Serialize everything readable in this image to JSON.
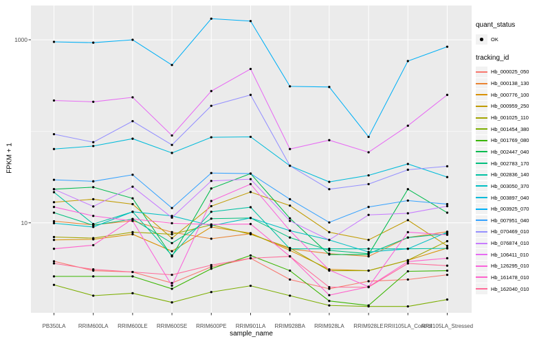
{
  "figure": {
    "y_axis": {
      "title": "FPKM + 1",
      "scale": "log10",
      "tick_labels": [
        "1000",
        "10"
      ]
    },
    "x_axis": {
      "title": "sample_name"
    },
    "legend": {
      "quant_status_title": "quant_status",
      "quant_status_items": [
        "OK"
      ],
      "tracking_id_title": "tracking_id"
    }
  },
  "colors": {
    "page_bg": "#FFFFFF",
    "panel_bg": "#EBEBEB",
    "grid": "#FFFFFF",
    "legend_key_bg": "#F2F2F2",
    "tick_text": "#4D4D4D",
    "text": "#000000",
    "point": "#000000"
  },
  "chart_data": {
    "type": "line",
    "title": "",
    "xlabel": "sample_name",
    "ylabel": "FPKM + 1",
    "y_scale": "log10",
    "ylim": [
      1,
      2400
    ],
    "y_major_ticks": [
      10,
      1000
    ],
    "y_minor_gridlines": [
      100
    ],
    "grid": true,
    "legend_position": "right",
    "quant_status": "OK",
    "point_marker": {
      "shape": "dot",
      "color": "#000000"
    },
    "categories": [
      "PB350LA",
      "RRIM600LA",
      "RRIM600LE",
      "RRIM600SE",
      "RRIM600PE",
      "RRIM901LA",
      "RRIM928BA",
      "RRIM928LA",
      "RRIM928LE",
      "RRII105LA_Control",
      "RRII105LA_Stressed"
    ],
    "series": [
      {
        "name": "Hb_000025_050",
        "color": "#F8766D",
        "values": [
          3.8,
          3.0,
          2.9,
          2.2,
          3.3,
          4.1,
          2.4,
          1.9,
          2.3,
          2.4,
          2.7
        ]
      },
      {
        "name": "Hb_000138_130",
        "color": "#EA8331",
        "values": [
          10.4,
          9.5,
          10.5,
          7.9,
          6.7,
          7.6,
          5.2,
          4.6,
          4.3,
          6.9,
          8.0
        ]
      },
      {
        "name": "Hb_000776_100",
        "color": "#D89000",
        "values": [
          6.5,
          6.6,
          7.5,
          4.9,
          9.0,
          7.7,
          5.0,
          3.1,
          3.0,
          3.9,
          5.3
        ]
      },
      {
        "name": "Hb_000959_250",
        "color": "#C09B00",
        "values": [
          16.8,
          18.1,
          16.0,
          6.8,
          15.2,
          21.7,
          15.4,
          7.9,
          6.5,
          10.7,
          5.6
        ]
      },
      {
        "name": "Hb_001025_110",
        "color": "#A3A500",
        "values": [
          7.0,
          6.8,
          7.9,
          7.5,
          9.5,
          7.5,
          5.3,
          3.0,
          3.0,
          3.9,
          6.3
        ]
      },
      {
        "name": "Hb_001454_380",
        "color": "#7CAE00",
        "values": [
          2.1,
          1.6,
          1.7,
          1.35,
          1.75,
          2.05,
          1.6,
          1.25,
          1.22,
          1.22,
          1.45
        ]
      },
      {
        "name": "Hb_001769_080",
        "color": "#39B600",
        "values": [
          2.6,
          2.6,
          2.6,
          1.9,
          3.15,
          4.4,
          3.0,
          1.4,
          1.25,
          2.95,
          3.0
        ]
      },
      {
        "name": "Hb_002447_040",
        "color": "#00BB4E",
        "values": [
          23.3,
          24.5,
          18.5,
          4.3,
          23.7,
          34.5,
          11.2,
          4.5,
          4.5,
          23.3,
          12.9
        ]
      },
      {
        "name": "Hb_002783_170",
        "color": "#00BF7D",
        "values": [
          12.9,
          9.4,
          11.0,
          6.0,
          11.1,
          11.3,
          6.9,
          5.0,
          4.6,
          6.9,
          7.6
        ]
      },
      {
        "name": "Hb_002836_140",
        "color": "#00C1A3",
        "values": [
          21.6,
          9.7,
          13.2,
          4.4,
          13.2,
          14.8,
          5.2,
          5.2,
          5.2,
          5.2,
          5.25
        ]
      },
      {
        "name": "Hb_003050_370",
        "color": "#00BFC4",
        "values": [
          9.9,
          9.0,
          13.2,
          11.9,
          9.3,
          11.3,
          8.2,
          6.5,
          4.8,
          5.2,
          7.9
        ]
      },
      {
        "name": "Hb_003897_040",
        "color": "#00BBDA",
        "values": [
          64,
          69,
          83,
          58,
          86,
          87,
          42,
          28,
          33,
          44,
          31.6
        ]
      },
      {
        "name": "Hb_003925_070",
        "color": "#00B0F6",
        "values": [
          950,
          930,
          1000,
          530,
          1700,
          1600,
          310,
          305,
          87,
          585,
          840
        ]
      },
      {
        "name": "Hb_007951_040",
        "color": "#35A2FF",
        "values": [
          29.5,
          28.4,
          33.5,
          14.5,
          35,
          34.5,
          18.1,
          10.1,
          14.9,
          17.5,
          16
        ]
      },
      {
        "name": "Hb_070469_010",
        "color": "#9590FF",
        "values": [
          93,
          76,
          129,
          71,
          190,
          250,
          42,
          23.3,
          26.5,
          38,
          41.5
        ]
      },
      {
        "name": "Hb_076874_010",
        "color": "#C77CFF",
        "values": [
          23.3,
          15.1,
          24.8,
          11.4,
          28.7,
          30,
          10.5,
          6.5,
          12.2,
          12.7,
          15.2
        ]
      },
      {
        "name": "Hb_106411_010",
        "color": "#E76BF3",
        "values": [
          217,
          210,
          235,
          90,
          275,
          480,
          64,
          80,
          59,
          115,
          250
        ]
      },
      {
        "name": "Hb_126295_010",
        "color": "#FA62DB",
        "values": [
          14.9,
          11.9,
          10.5,
          2.06,
          17.3,
          26.5,
          8.2,
          3.05,
          2.0,
          7.9,
          7.4
        ]
      },
      {
        "name": "Hb_161478_010",
        "color": "#FF61CC",
        "values": [
          5.2,
          5.7,
          11.0,
          9.9,
          9.6,
          9.7,
          4.3,
          1.62,
          2.0,
          3.77,
          4.1
        ]
      },
      {
        "name": "Hb_162040_010",
        "color": "#FF6A98",
        "values": [
          3.6,
          3.1,
          2.9,
          2.7,
          3.45,
          4.1,
          4.3,
          1.98,
          1.98,
          3.6,
          3.4
        ]
      }
    ]
  }
}
